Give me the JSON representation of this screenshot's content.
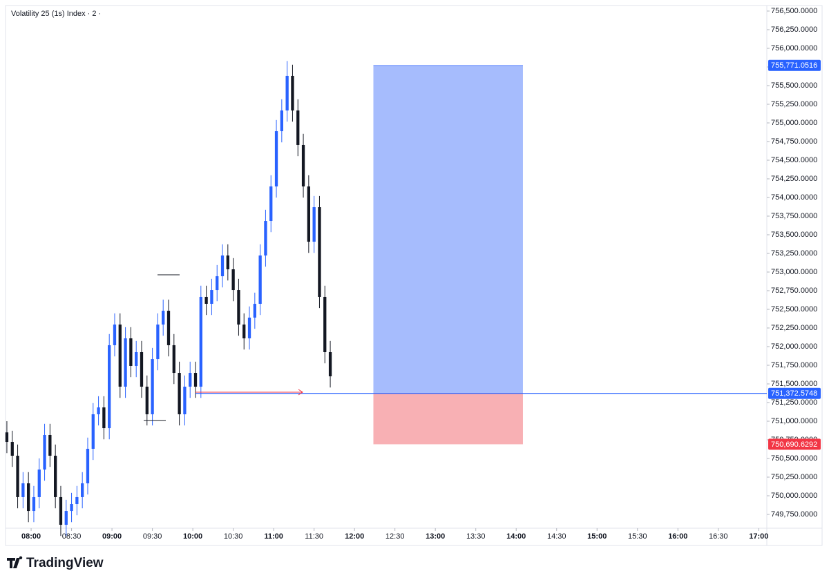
{
  "chart_data": {
    "type": "candlestick",
    "title": "Volatility 25 (1s) Index · 2 ·",
    "brand": "TradingView",
    "up_color": "#2962ff",
    "down_color": "#131722",
    "grid": false,
    "x": [
      "07:42",
      "07:46",
      "07:50",
      "07:54",
      "07:58",
      "08:02",
      "08:06",
      "08:10",
      "08:14",
      "08:18",
      "08:22",
      "08:26",
      "08:30",
      "08:34",
      "08:38",
      "08:42",
      "08:46",
      "08:50",
      "08:54",
      "08:58",
      "09:02",
      "09:06",
      "09:10",
      "09:14",
      "09:18",
      "09:22",
      "09:26",
      "09:30",
      "09:34",
      "09:38",
      "09:42",
      "09:46",
      "09:50",
      "09:54",
      "09:58",
      "10:02",
      "10:06",
      "10:10",
      "10:14",
      "10:18",
      "10:22",
      "10:26",
      "10:30",
      "10:34",
      "10:38",
      "10:42",
      "10:46",
      "10:50",
      "10:54",
      "10:58",
      "11:02",
      "11:06",
      "11:10",
      "11:14",
      "11:18",
      "11:22",
      "11:26",
      "11:30",
      "11:34",
      "11:38",
      "11:42"
    ],
    "open": [
      750850,
      750722,
      750537,
      749982,
      750167,
      749796,
      749982,
      750352,
      750815,
      750537,
      749982,
      749611,
      749796,
      749889,
      749982,
      750167,
      750630,
      751093,
      751185,
      750907,
      752019,
      752296,
      751463,
      752111,
      751741,
      751926,
      751463,
      751093,
      751833,
      752296,
      752481,
      752019,
      751648,
      751093,
      751463,
      751648,
      751463,
      752667,
      752574,
      752759,
      752944,
      753222,
      753037,
      752759,
      752296,
      752111,
      752389,
      752574,
      753222,
      753685,
      754148,
      754889,
      755167,
      755630,
      755167,
      754704,
      754148,
      753407,
      753870,
      752667,
      751926
    ],
    "high": [
      751000,
      750872,
      750687,
      750317,
      750317,
      750132,
      750502,
      750965,
      750965,
      750687,
      750132,
      749946,
      750039,
      750132,
      750317,
      750780,
      751243,
      751335,
      751335,
      752169,
      752446,
      752446,
      752261,
      752261,
      752076,
      752076,
      751613,
      751983,
      752446,
      752631,
      752631,
      752169,
      751798,
      751613,
      751798,
      751798,
      752817,
      752817,
      752909,
      753094,
      753372,
      753372,
      753187,
      752909,
      752446,
      752539,
      752724,
      753372,
      753835,
      754298,
      755039,
      755317,
      755830,
      755780,
      755317,
      754854,
      754298,
      754020,
      754020,
      752817,
      752076
    ],
    "low": [
      750572,
      750387,
      749832,
      749832,
      749646,
      749646,
      749832,
      750202,
      750387,
      749832,
      749461,
      749461,
      749646,
      749739,
      749832,
      750017,
      750480,
      750943,
      750757,
      750757,
      751869,
      751313,
      751313,
      751591,
      751591,
      751313,
      750943,
      750943,
      751683,
      752146,
      751869,
      751498,
      750943,
      750943,
      751313,
      751313,
      751313,
      752424,
      752424,
      752609,
      752794,
      752887,
      752609,
      752146,
      751961,
      751961,
      752239,
      752424,
      753072,
      753535,
      753998,
      754739,
      755017,
      755017,
      754554,
      753998,
      753257,
      753257,
      752517,
      751776,
      751452
    ],
    "close": [
      750722,
      750537,
      749982,
      750167,
      749796,
      749982,
      750352,
      750815,
      750537,
      749982,
      749611,
      749796,
      749889,
      749982,
      750167,
      750630,
      751093,
      751185,
      750907,
      752019,
      752296,
      751463,
      752111,
      751741,
      751926,
      751463,
      751093,
      751833,
      752296,
      752481,
      752019,
      751648,
      751093,
      751463,
      751648,
      751463,
      752667,
      752574,
      752759,
      752944,
      753222,
      753037,
      752759,
      752296,
      752111,
      752389,
      752574,
      753222,
      753685,
      754148,
      754889,
      755167,
      755630,
      755167,
      754704,
      754148,
      753407,
      753870,
      752667,
      751926,
      751602
    ],
    "xlim": [
      "07:41",
      "17:06"
    ],
    "xticks": [
      "08:00",
      "08:30",
      "09:00",
      "09:30",
      "10:00",
      "10:30",
      "11:00",
      "11:30",
      "12:00",
      "12:30",
      "13:00",
      "13:30",
      "14:00",
      "14:30",
      "15:00",
      "15:30",
      "16:00",
      "16:30",
      "17:00"
    ],
    "ylim": [
      749565,
      756574
    ],
    "yticks": [
      {
        "value": 749750,
        "label": "749,750.0000"
      },
      {
        "value": 750000,
        "label": "750,000.0000"
      },
      {
        "value": 750250,
        "label": "750,250.0000"
      },
      {
        "value": 750500,
        "label": "750,500.0000"
      },
      {
        "value": 750750,
        "label": "750,750.0000"
      },
      {
        "value": 751000,
        "label": "751,000.0000"
      },
      {
        "value": 751250,
        "label": "751,250.0000"
      },
      {
        "value": 751500,
        "label": "751,500.0000"
      },
      {
        "value": 751750,
        "label": "751,750.0000"
      },
      {
        "value": 752000,
        "label": "752,000.0000"
      },
      {
        "value": 752250,
        "label": "752,250.0000"
      },
      {
        "value": 752500,
        "label": "752,500.0000"
      },
      {
        "value": 752750,
        "label": "752,750.0000"
      },
      {
        "value": 753000,
        "label": "753,000.0000"
      },
      {
        "value": 753250,
        "label": "753,250.0000"
      },
      {
        "value": 753500,
        "label": "753,500.0000"
      },
      {
        "value": 753750,
        "label": "753,750.0000"
      },
      {
        "value": 754000,
        "label": "754,000.0000"
      },
      {
        "value": 754250,
        "label": "754,250.0000"
      },
      {
        "value": 754500,
        "label": "754,500.0000"
      },
      {
        "value": 754750,
        "label": "754,750.0000"
      },
      {
        "value": 755000,
        "label": "755,000.0000"
      },
      {
        "value": 755250,
        "label": "755,250.0000"
      },
      {
        "value": 755500,
        "label": "755,500.0000"
      },
      {
        "value": 755750,
        "label": "755,750.0000"
      },
      {
        "value": 756000,
        "label": "756,000.0000"
      },
      {
        "value": 756250,
        "label": "756,250.0000"
      },
      {
        "value": 756500,
        "label": "756,500.0000"
      }
    ],
    "position": {
      "start": "12:14",
      "end": "14:05",
      "target": {
        "value": 755771.0516,
        "label": "755,771.0516"
      },
      "entry": {
        "value": 751372.5748,
        "label": "751,372.5748"
      },
      "stop": {
        "value": 750690.6292,
        "label": "750,690.6292"
      },
      "target_color": "#a6bcfd",
      "stop_color": "#f8b0b4",
      "entry_color": "#2962ff",
      "stop_label_color": "#f23645"
    }
  }
}
